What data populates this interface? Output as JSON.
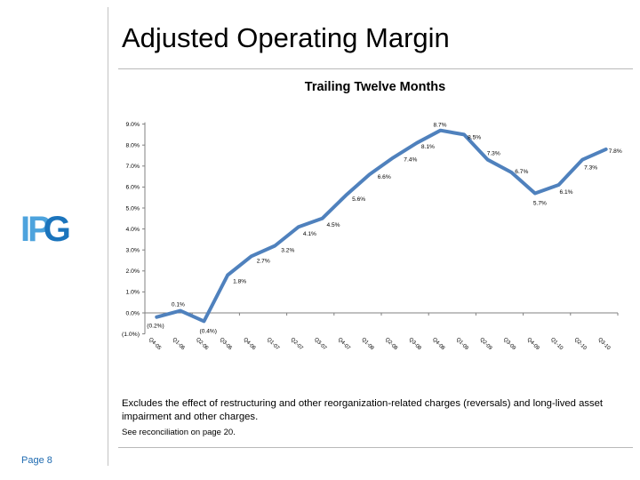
{
  "header": {
    "title": "Adjusted Operating Margin"
  },
  "logo": {
    "ip": "IP",
    "g": "G"
  },
  "chart_data": {
    "type": "line",
    "title": "Trailing Twelve Months",
    "categories": [
      "Q4-05",
      "Q1-06",
      "Q2-06",
      "Q3-06",
      "Q4-06",
      "Q1-07",
      "Q2-07",
      "Q3-07",
      "Q4-07",
      "Q1-08",
      "Q2-08",
      "Q3-08",
      "Q4-08",
      "Q1-09",
      "Q2-09",
      "Q3-09",
      "Q4-09",
      "Q1-10",
      "Q2-10",
      "Q3-10"
    ],
    "values": [
      -0.2,
      0.1,
      -0.4,
      1.8,
      2.7,
      3.2,
      4.1,
      4.5,
      5.6,
      6.6,
      7.4,
      8.1,
      8.7,
      8.5,
      7.3,
      6.7,
      5.7,
      6.1,
      7.3,
      7.8
    ],
    "point_labels": [
      "(0.2%)",
      "0.1%",
      "(0.4%)",
      "1.8%",
      "2.7%",
      "3.2%",
      "4.1%",
      "4.5%",
      "5.6%",
      "6.6%",
      "7.4%",
      "8.1%",
      "8.7%",
      "8.5%",
      "7.3%",
      "6.7%",
      "5.7%",
      "6.1%",
      "7.3%",
      "7.8%"
    ],
    "y_tick_labels": [
      "9.0%",
      "8.0%",
      "7.0%",
      "6.0%",
      "5.0%",
      "4.0%",
      "3.0%",
      "2.0%",
      "1.0%",
      "0.0%",
      "(1.0%)"
    ],
    "y_tick_values": [
      9,
      8,
      7,
      6,
      5,
      4,
      3,
      2,
      1,
      0,
      -1
    ],
    "ylim": [
      -1.0,
      9.0
    ],
    "xlabel": "",
    "ylabel": "",
    "legend_position": "none",
    "grid": "zero-line-only",
    "series_color": "#4f81bd",
    "axis_color": "#808080"
  },
  "footer": {
    "note1": "Excludes the effect of restructuring and other reorganization-related charges (reversals) and long-lived asset impairment and other charges.",
    "note2": "See reconciliation on page 20.",
    "page_label": "Page 8"
  }
}
